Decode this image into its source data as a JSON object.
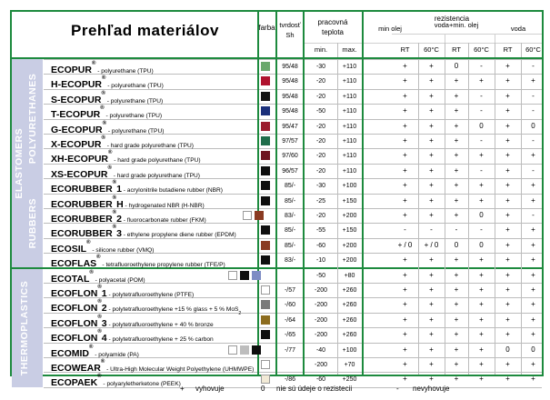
{
  "title": "Prehľad materiálov",
  "headers": {
    "color": "farba",
    "hardness": [
      "tvrdosť",
      "Sh"
    ],
    "temp": [
      "pracovná",
      "teplota"
    ],
    "temp_min": "min.",
    "temp_max": "max.",
    "resistance": "rezistencia",
    "groups": [
      "min olej",
      "voda+min. olej",
      "voda"
    ],
    "subcols": [
      "RT",
      "60°C",
      "RT",
      "60°C",
      "RT",
      "60°C"
    ]
  },
  "categories": {
    "elastomers": "ELASTOMERS",
    "polyurethanes": "POLYURETHANES",
    "rubbers": "RUBBERS",
    "thermoplastics": "THERMOPLASTICS"
  },
  "rows": [
    {
      "name": "ECOPUR",
      "desc": " - polyurethane (TPU)",
      "swatches": [
        "#6aa86c"
      ],
      "hard": "95/48",
      "min": "-30",
      "max": "+110",
      "res": [
        "+",
        "+",
        "0",
        "-",
        "+",
        "-"
      ]
    },
    {
      "name": "H-ECOPUR",
      "desc": " - polyurethane (TPU)",
      "swatches": [
        "#b0122e"
      ],
      "hard": "95/48",
      "min": "-20",
      "max": "+110",
      "res": [
        "+",
        "+",
        "+",
        "+",
        "+",
        "+"
      ]
    },
    {
      "name": "S-ECOPUR",
      "desc": " - polyurethane (TPU)",
      "swatches": [
        "#111111"
      ],
      "hard": "95/48",
      "min": "-20",
      "max": "+110",
      "res": [
        "+",
        "+",
        "+",
        "-",
        "+",
        "-"
      ]
    },
    {
      "name": "T-ECOPUR",
      "desc": " - polyurethane (TPU)",
      "swatches": [
        "#1a2f7a"
      ],
      "hard": "95/48",
      "min": "-50",
      "max": "+110",
      "res": [
        "+",
        "+",
        "+",
        "-",
        "+",
        "-"
      ]
    },
    {
      "name": "G-ECOPUR",
      "desc": " - polyurethane (TPU)",
      "swatches": [
        "#9a1a2c"
      ],
      "hard": "95/47",
      "min": "-20",
      "max": "+110",
      "res": [
        "+",
        "+",
        "+",
        "0",
        "+",
        "0"
      ]
    },
    {
      "name": "X-ECOPUR",
      "desc": " - hard grade polyurethane (TPU)",
      "swatches": [
        "#1f6d4a"
      ],
      "hard": "97/57",
      "min": "-20",
      "max": "+110",
      "res": [
        "+",
        "+",
        "+",
        "-",
        "+",
        "-"
      ]
    },
    {
      "name": "XH-ECOPUR",
      "desc": " - hard grade polyurethane (TPU)",
      "swatches": [
        "#6e1520"
      ],
      "hard": "97/60",
      "min": "-20",
      "max": "+110",
      "res": [
        "+",
        "+",
        "+",
        "+",
        "+",
        "+"
      ]
    },
    {
      "name": "XS-ECOPUR",
      "desc": " - hard grade polyurethane (TPU)",
      "swatches": [
        "#0e0e0e"
      ],
      "hard": "96/57",
      "min": "-20",
      "max": "+110",
      "res": [
        "+",
        "+",
        "+",
        "-",
        "+",
        "-"
      ]
    },
    {
      "name": "ECORUBBER",
      "suffix": "1",
      "desc": " - acrylonitrile butadiene rubber (NBR)",
      "swatches": [
        "#0e0e0e"
      ],
      "hard": "85/-",
      "min": "-30",
      "max": "+100",
      "res": [
        "+",
        "+",
        "+",
        "+",
        "+",
        "+"
      ]
    },
    {
      "name": "ECORUBBER",
      "suffix": "H",
      "desc": " - hydrogenated NBR (H-NBR)",
      "swatches": [
        "#0e0e0e"
      ],
      "hard": "85/-",
      "min": "-25",
      "max": "+150",
      "res": [
        "+",
        "+",
        "+",
        "+",
        "+",
        "+"
      ]
    },
    {
      "name": "ECORUBBER",
      "suffix": "2",
      "desc": " - fluorocarbonate rubber (FKM)",
      "swatches": [
        "#ffffff",
        "#8a3b22"
      ],
      "hard": "83/-",
      "min": "-20",
      "max": "+200",
      "res": [
        "+",
        "+",
        "+",
        "0",
        "+",
        "-"
      ]
    },
    {
      "name": "ECORUBBER",
      "suffix": "3",
      "desc": " - ethylene propylene diene rubber (EPDM)",
      "swatches": [
        "#0e0e0e"
      ],
      "hard": "85/-",
      "min": "-55",
      "max": "+150",
      "res": [
        "-",
        "-",
        "-",
        "-",
        "+",
        "+"
      ]
    },
    {
      "name": "ECOSIL",
      "desc": " - silicone rubber (VMQ)",
      "swatches": [
        "#8a3b22"
      ],
      "hard": "85/-",
      "min": "-60",
      "max": "+200",
      "res": [
        "+ / 0",
        "+ / 0",
        "0",
        "0",
        "+",
        "+"
      ]
    },
    {
      "name": "ECOFLAS",
      "desc": " - tetrafluoroethylene propylene rubber (TFE/P)",
      "swatches": [
        "#0e0e0e"
      ],
      "hard": "83/-",
      "min": "-10",
      "max": "+200",
      "res": [
        "+",
        "+",
        "+",
        "+",
        "+",
        "+"
      ]
    },
    {
      "name": "ECOTAL",
      "desc": " - polyacetal (POM)",
      "swatches": [
        "#ffffff",
        "#0e0e0e",
        "#7d8cc4"
      ],
      "hard": "",
      "min": "-50",
      "max": "+80",
      "res": [
        "+",
        "+",
        "+",
        "+",
        "+",
        "+"
      ]
    },
    {
      "name": "ECOFLON",
      "suffix": "1",
      "desc": " - polytetrafluoroethylene (PTFE)",
      "swatches": [
        "#ffffff"
      ],
      "hard": "-/57",
      "min": "-200",
      "max": "+260",
      "res": [
        "+",
        "+",
        "+",
        "+",
        "+",
        "+"
      ]
    },
    {
      "name": "ECOFLON",
      "suffix": "2",
      "desc": " - polytetrafluoroethylene +15 % glass + 5 % MoS",
      "sub": "2",
      "swatches": [
        "#7a7a7a"
      ],
      "hard": "-/60",
      "min": "-200",
      "max": "+260",
      "res": [
        "+",
        "+",
        "+",
        "+",
        "+",
        "+"
      ]
    },
    {
      "name": "ECOFLON",
      "suffix": "3",
      "desc": " - polytetrafluoroethylene + 40 % bronze",
      "swatches": [
        "#8c6c1e"
      ],
      "hard": "-/64",
      "min": "-200",
      "max": "+260",
      "res": [
        "+",
        "+",
        "+",
        "+",
        "+",
        "+"
      ]
    },
    {
      "name": "ECOFLON",
      "suffix": "4",
      "desc": " - polytetrafluoroethylene + 25 % carbon",
      "swatches": [
        "#0e0e0e"
      ],
      "hard": "-/65",
      "min": "-200",
      "max": "+260",
      "res": [
        "+",
        "+",
        "+",
        "+",
        "+",
        "+"
      ]
    },
    {
      "name": "ECOMID",
      "desc": " - polyamide (PA)",
      "swatches": [
        "#ffffff",
        "#bdbdbd",
        "#0e0e0e"
      ],
      "hard": "-/77",
      "min": "-40",
      "max": "+100",
      "res": [
        "+",
        "+",
        "+",
        "+",
        "0",
        "0"
      ]
    },
    {
      "name": "ECOWEAR",
      "desc": " - Ultra-High Molecular Weight Polyethylene (UHMWPE)",
      "swatches": [
        "#ffffff"
      ],
      "hard": "",
      "min": "-200",
      "max": "+70",
      "res": [
        "+",
        "+",
        "+",
        "+",
        "+",
        "+"
      ]
    },
    {
      "name": "ECOPAEK",
      "desc": " - polyaryletherketone (PEEK)",
      "swatches": [
        "#f2ead6"
      ],
      "hard": "-/86",
      "min": "-60",
      "max": "+250",
      "res": [
        "+",
        "+",
        "+",
        "+",
        "+",
        "+"
      ]
    }
  ],
  "legend": [
    {
      "symbol": "+",
      "text": "vyhovuje"
    },
    {
      "symbol": "0",
      "text": "nie sú údeje o rezistecii"
    },
    {
      "symbol": "-",
      "text": "nevyhovuje"
    }
  ]
}
